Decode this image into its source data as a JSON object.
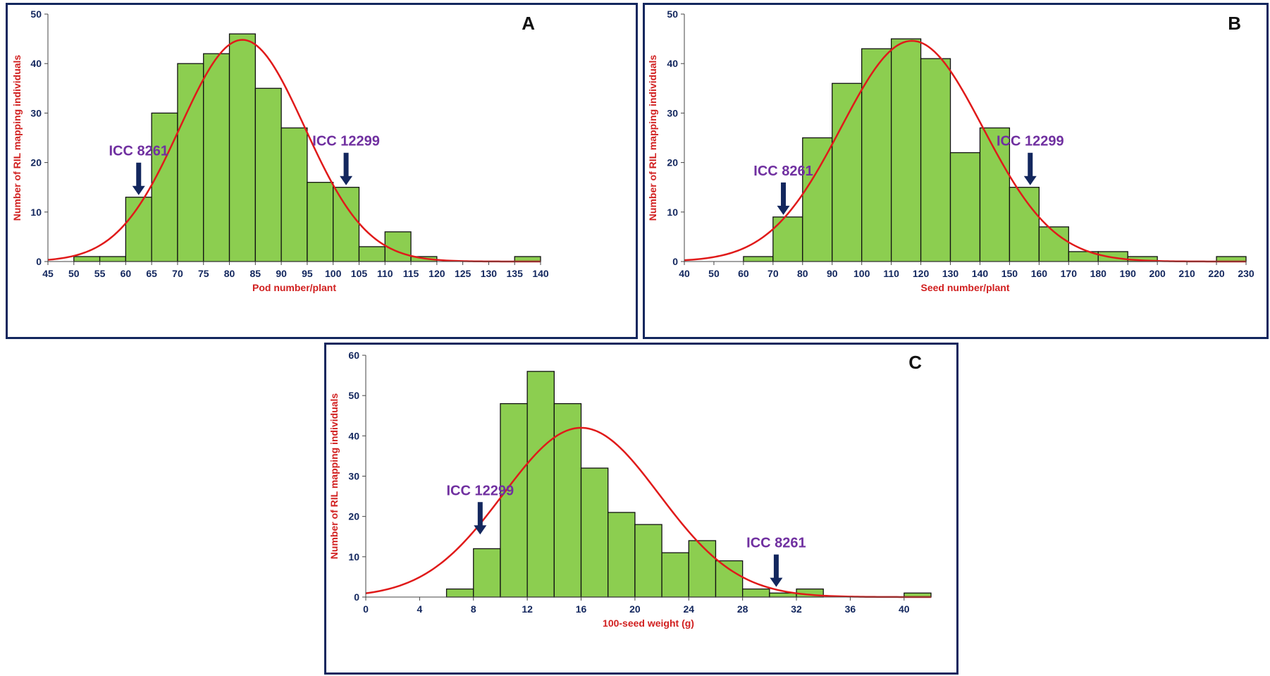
{
  "colors": {
    "bar_fill": "#8cce50",
    "bar_stroke": "#111111",
    "curve": "#e01a1a",
    "axis_text": "#13275e",
    "marker": "#7030a0",
    "arrow": "#13275e",
    "border": "#13275e"
  },
  "chart_data": [
    {
      "type": "bar",
      "panel_letter": "A",
      "xlabel": "Pod number/plant",
      "ylabel": "Number of RIL mapping individuals",
      "xlim": [
        45,
        140
      ],
      "ylim": [
        0,
        50
      ],
      "xticks": [
        45,
        50,
        55,
        60,
        65,
        70,
        75,
        80,
        85,
        90,
        95,
        100,
        105,
        110,
        115,
        120,
        125,
        130,
        135,
        140
      ],
      "yticks": [
        0,
        10,
        20,
        30,
        40,
        50
      ],
      "bin_width": 5,
      "bins": [
        50,
        55,
        60,
        65,
        70,
        75,
        80,
        85,
        90,
        95,
        100,
        105,
        110,
        115,
        135
      ],
      "values": [
        1,
        1,
        13,
        30,
        40,
        42,
        46,
        35,
        27,
        16,
        15,
        3,
        6,
        1,
        1
      ],
      "normal_curve": {
        "mean": 82.5,
        "sd": 12,
        "peak": 44.8
      },
      "annotations": [
        {
          "text": "ICC 8261",
          "x": 62.5,
          "y": 13
        },
        {
          "text": "ICC 12299",
          "x": 102.5,
          "y": 15
        }
      ]
    },
    {
      "type": "bar",
      "panel_letter": "B",
      "xlabel": "Seed number/plant",
      "ylabel": "Number of RIL mapping individuals",
      "xlim": [
        40,
        230
      ],
      "ylim": [
        0,
        50
      ],
      "xticks": [
        40,
        50,
        60,
        70,
        80,
        90,
        100,
        110,
        120,
        130,
        140,
        150,
        160,
        170,
        180,
        190,
        200,
        210,
        220,
        230
      ],
      "yticks": [
        0,
        10,
        20,
        30,
        40,
        50
      ],
      "bin_width": 10,
      "bins": [
        60,
        70,
        80,
        90,
        100,
        110,
        120,
        130,
        140,
        150,
        160,
        170,
        180,
        190,
        220
      ],
      "values": [
        1,
        9,
        25,
        36,
        43,
        45,
        41,
        22,
        27,
        15,
        7,
        2,
        2,
        1,
        1
      ],
      "normal_curve": {
        "mean": 117,
        "sd": 24,
        "peak": 44.6
      },
      "annotations": [
        {
          "text": "ICC 8261",
          "x": 73.5,
          "y": 9
        },
        {
          "text": "ICC 12299",
          "x": 157,
          "y": 15
        }
      ]
    },
    {
      "type": "bar",
      "panel_letter": "C",
      "xlabel": "100-seed weight (g)",
      "ylabel": "Number of RIL mapping individuals",
      "xlim": [
        0,
        42
      ],
      "ylim": [
        0,
        60
      ],
      "xticks": [
        0,
        4,
        8,
        12,
        16,
        20,
        24,
        28,
        32,
        36,
        40
      ],
      "yticks": [
        0,
        10,
        20,
        30,
        40,
        50,
        60
      ],
      "bin_width": 2,
      "bins": [
        6,
        8,
        10,
        12,
        14,
        16,
        18,
        20,
        22,
        24,
        26,
        28,
        30,
        32,
        40
      ],
      "values": [
        2,
        12,
        48,
        56,
        48,
        32,
        21,
        18,
        11,
        14,
        9,
        2,
        1,
        2,
        1
      ],
      "normal_curve": {
        "mean": 16,
        "sd": 5.8,
        "peak": 42
      },
      "annotations": [
        {
          "text": "ICC 12299",
          "x": 8.5,
          "y": 15
        },
        {
          "text": "ICC 8261",
          "x": 30.5,
          "y": 2
        }
      ]
    }
  ]
}
